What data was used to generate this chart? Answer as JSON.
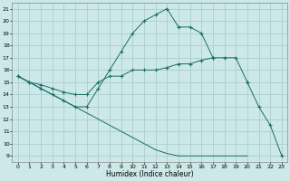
{
  "xlabel": "Humidex (Indice chaleur)",
  "bg_color": "#cce8e8",
  "grid_color": "#aacece",
  "line_color": "#1a6e64",
  "xlim": [
    -0.5,
    23.5
  ],
  "ylim": [
    8.5,
    21.5
  ],
  "xticks": [
    0,
    1,
    2,
    3,
    4,
    5,
    6,
    7,
    8,
    9,
    10,
    11,
    12,
    13,
    14,
    15,
    16,
    17,
    18,
    19,
    20,
    21,
    22,
    23
  ],
  "yticks": [
    9,
    10,
    11,
    12,
    13,
    14,
    15,
    16,
    17,
    18,
    19,
    20,
    21
  ],
  "series": [
    {
      "x": [
        0,
        1,
        2,
        3,
        4,
        5,
        6,
        7,
        8,
        9,
        10,
        11,
        12,
        13,
        14,
        15,
        16,
        17
      ],
      "y": [
        15.5,
        15.0,
        14.5,
        14.0,
        13.5,
        13.0,
        13.0,
        14.5,
        16.0,
        17.5,
        19.0,
        20.0,
        20.5,
        21.0,
        19.5,
        19.5,
        19.0,
        17.0
      ],
      "marker": true
    },
    {
      "x": [
        0,
        1,
        2,
        3,
        4,
        5,
        6,
        7,
        8,
        9,
        10,
        11,
        12,
        13,
        14,
        15,
        16,
        17,
        18,
        19,
        20
      ],
      "y": [
        15.5,
        15.0,
        14.8,
        14.5,
        14.2,
        14.0,
        14.0,
        15.0,
        15.5,
        15.5,
        16.0,
        16.0,
        16.0,
        16.2,
        16.5,
        16.5,
        16.8,
        17.0,
        17.0,
        17.0,
        15.0
      ],
      "marker": true
    },
    {
      "x": [
        0,
        1,
        2,
        3,
        4,
        5,
        6,
        7,
        8,
        9,
        10,
        11,
        12,
        13,
        14,
        15,
        16,
        17,
        18,
        19,
        20
      ],
      "y": [
        15.5,
        15.0,
        14.5,
        14.0,
        13.5,
        13.0,
        12.5,
        12.0,
        11.5,
        11.0,
        10.5,
        10.0,
        9.5,
        9.2,
        9.0,
        9.0,
        9.0,
        9.0,
        9.0,
        9.0,
        9.0
      ],
      "marker": false
    },
    {
      "x": [
        20,
        21,
        22,
        23
      ],
      "y": [
        15.0,
        13.0,
        11.5,
        9.0
      ],
      "marker": true
    }
  ]
}
